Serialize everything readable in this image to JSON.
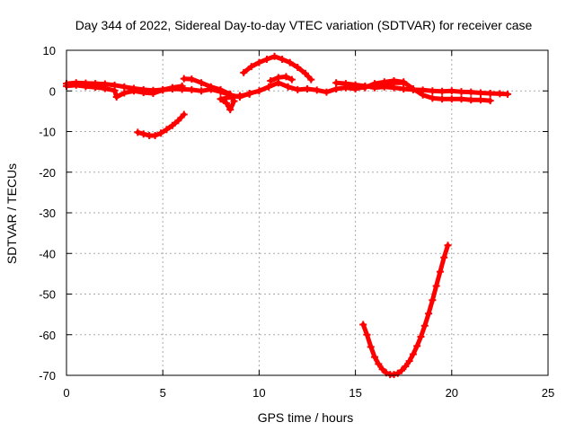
{
  "chart_data": {
    "type": "scatter",
    "title": "Day 344 of 2022, Sidereal Day-to-day VTEC variation (SDTVAR) for receiver case",
    "xlabel": "GPS time / hours",
    "ylabel": "SDTVAR / TECUs",
    "xlim": [
      0,
      25
    ],
    "ylim": [
      -70,
      10
    ],
    "x_ticks": [
      0,
      5,
      10,
      15,
      20,
      25
    ],
    "y_ticks": [
      10,
      0,
      -10,
      -20,
      -30,
      -40,
      -50,
      -60,
      -70
    ],
    "x_tick_labels": [
      "0",
      "5",
      "10",
      "15",
      "20",
      "25"
    ],
    "y_tick_labels": [
      "10",
      "0",
      "-10",
      "-20",
      "-30",
      "-40",
      "-50",
      "-60",
      "-70"
    ],
    "grid": true,
    "legend": "none",
    "marker": "+",
    "color": "#ff0000",
    "series": [
      {
        "name": "arc-1",
        "points": [
          [
            0.0,
            1.8
          ],
          [
            0.5,
            2.0
          ],
          [
            1.0,
            1.9
          ],
          [
            1.5,
            1.8
          ],
          [
            2.0,
            1.7
          ],
          [
            2.5,
            1.4
          ],
          [
            3.0,
            1.0
          ],
          [
            3.5,
            0.6
          ],
          [
            4.0,
            0.3
          ],
          [
            4.5,
            0.1
          ],
          [
            5.0,
            0.3
          ],
          [
            5.5,
            0.8
          ],
          [
            6.0,
            1.2
          ]
        ]
      },
      {
        "name": "arc-2",
        "points": [
          [
            0.0,
            1.2
          ],
          [
            0.5,
            1.4
          ],
          [
            1.0,
            1.1
          ],
          [
            1.5,
            0.9
          ],
          [
            2.0,
            0.6
          ],
          [
            2.5,
            0.1
          ],
          [
            2.6,
            -1.5
          ],
          [
            3.0,
            -0.5
          ],
          [
            3.5,
            0.0
          ],
          [
            4.0,
            -0.4
          ],
          [
            4.5,
            -0.6
          ],
          [
            5.0,
            0.2
          ],
          [
            5.5,
            0.5
          ],
          [
            6.0,
            0.4
          ],
          [
            6.5,
            0.3
          ],
          [
            7.0,
            0.0
          ],
          [
            7.5,
            0.4
          ],
          [
            8.0,
            -0.2
          ],
          [
            8.5,
            -1.0
          ],
          [
            9.0,
            -1.5
          ],
          [
            9.5,
            -0.6
          ],
          [
            10.0,
            0.0
          ],
          [
            10.5,
            1.0
          ],
          [
            11.0,
            2.0
          ],
          [
            11.5,
            1.0
          ],
          [
            12.0,
            0.3
          ],
          [
            12.5,
            0.5
          ],
          [
            13.0,
            0.2
          ],
          [
            13.5,
            -0.3
          ],
          [
            14.0,
            0.5
          ],
          [
            14.5,
            0.8
          ],
          [
            15.0,
            0.5
          ],
          [
            15.5,
            1.0
          ],
          [
            16.0,
            1.5
          ],
          [
            16.5,
            1.6
          ],
          [
            17.0,
            2.0
          ],
          [
            17.5,
            2.0
          ]
        ]
      },
      {
        "name": "arc-3",
        "points": [
          [
            3.7,
            -10.2
          ],
          [
            4.0,
            -10.6
          ],
          [
            4.3,
            -11.0
          ],
          [
            4.6,
            -11.0
          ],
          [
            4.9,
            -10.4
          ],
          [
            5.2,
            -9.5
          ],
          [
            5.5,
            -8.5
          ],
          [
            5.8,
            -7.3
          ],
          [
            6.1,
            -5.8
          ]
        ]
      },
      {
        "name": "arc-4",
        "points": [
          [
            6.1,
            3.0
          ],
          [
            6.5,
            2.9
          ],
          [
            7.0,
            2.0
          ],
          [
            7.5,
            1.0
          ],
          [
            8.0,
            0.3
          ],
          [
            8.5,
            -0.8
          ],
          [
            8.7,
            -2.5
          ],
          [
            8.5,
            -4.6
          ],
          [
            8.3,
            -3.0
          ],
          [
            8.0,
            -2.0
          ],
          [
            8.6,
            -1.5
          ],
          [
            9.0,
            -1.2
          ],
          [
            9.5,
            -0.8
          ]
        ]
      },
      {
        "name": "arc-5",
        "points": [
          [
            9.2,
            4.5
          ],
          [
            9.6,
            6.0
          ],
          [
            10.0,
            7.0
          ],
          [
            10.4,
            7.8
          ],
          [
            10.8,
            8.5
          ],
          [
            11.2,
            7.8
          ],
          [
            11.6,
            7.0
          ],
          [
            12.0,
            5.8
          ],
          [
            12.4,
            4.3
          ],
          [
            12.7,
            2.8
          ]
        ]
      },
      {
        "name": "arc-6",
        "points": [
          [
            10.6,
            2.5
          ],
          [
            11.0,
            3.3
          ],
          [
            11.4,
            3.5
          ],
          [
            11.7,
            2.8
          ]
        ]
      },
      {
        "name": "arc-7",
        "points": [
          [
            14.0,
            2.0
          ],
          [
            14.5,
            1.8
          ],
          [
            15.0,
            1.5
          ],
          [
            15.5,
            1.2
          ],
          [
            16.0,
            0.8
          ],
          [
            16.5,
            1.0
          ],
          [
            17.0,
            0.8
          ],
          [
            17.5,
            0.5
          ],
          [
            18.0,
            0.3
          ],
          [
            18.5,
            0.2
          ],
          [
            19.0,
            0.0
          ],
          [
            19.5,
            -0.1
          ],
          [
            20.0,
            0.0
          ],
          [
            20.5,
            -0.2
          ],
          [
            21.0,
            -0.3
          ],
          [
            21.5,
            -0.5
          ],
          [
            22.0,
            -0.6
          ],
          [
            22.5,
            -0.7
          ],
          [
            22.9,
            -0.8
          ]
        ]
      },
      {
        "name": "arc-8",
        "points": [
          [
            15.0,
            1.0
          ],
          [
            15.5,
            0.8
          ],
          [
            16.0,
            1.8
          ],
          [
            16.5,
            2.2
          ],
          [
            17.0,
            2.5
          ],
          [
            17.5,
            2.2
          ],
          [
            18.0,
            0.5
          ],
          [
            18.5,
            -1.0
          ],
          [
            19.0,
            -1.8
          ],
          [
            19.5,
            -2.0
          ],
          [
            20.0,
            -2.0
          ],
          [
            20.5,
            -2.0
          ],
          [
            21.0,
            -2.2
          ],
          [
            21.5,
            -2.2
          ],
          [
            22.0,
            -2.4
          ]
        ]
      },
      {
        "name": "arc-9",
        "points": [
          [
            15.4,
            -57.5
          ],
          [
            15.6,
            -60.0
          ],
          [
            15.8,
            -63.0
          ],
          [
            16.0,
            -65.5
          ],
          [
            16.2,
            -67.2
          ],
          [
            16.4,
            -68.5
          ],
          [
            16.6,
            -69.4
          ],
          [
            16.8,
            -69.8
          ],
          [
            17.0,
            -69.8
          ],
          [
            17.2,
            -69.5
          ],
          [
            17.4,
            -68.8
          ],
          [
            17.6,
            -67.8
          ],
          [
            17.8,
            -66.5
          ],
          [
            18.0,
            -64.8
          ],
          [
            18.2,
            -62.8
          ],
          [
            18.4,
            -60.5
          ],
          [
            18.6,
            -57.8
          ],
          [
            18.8,
            -54.8
          ],
          [
            19.0,
            -51.5
          ],
          [
            19.2,
            -48.0
          ],
          [
            19.4,
            -44.5
          ],
          [
            19.6,
            -41.0
          ],
          [
            19.8,
            -38.0
          ]
        ]
      }
    ]
  }
}
